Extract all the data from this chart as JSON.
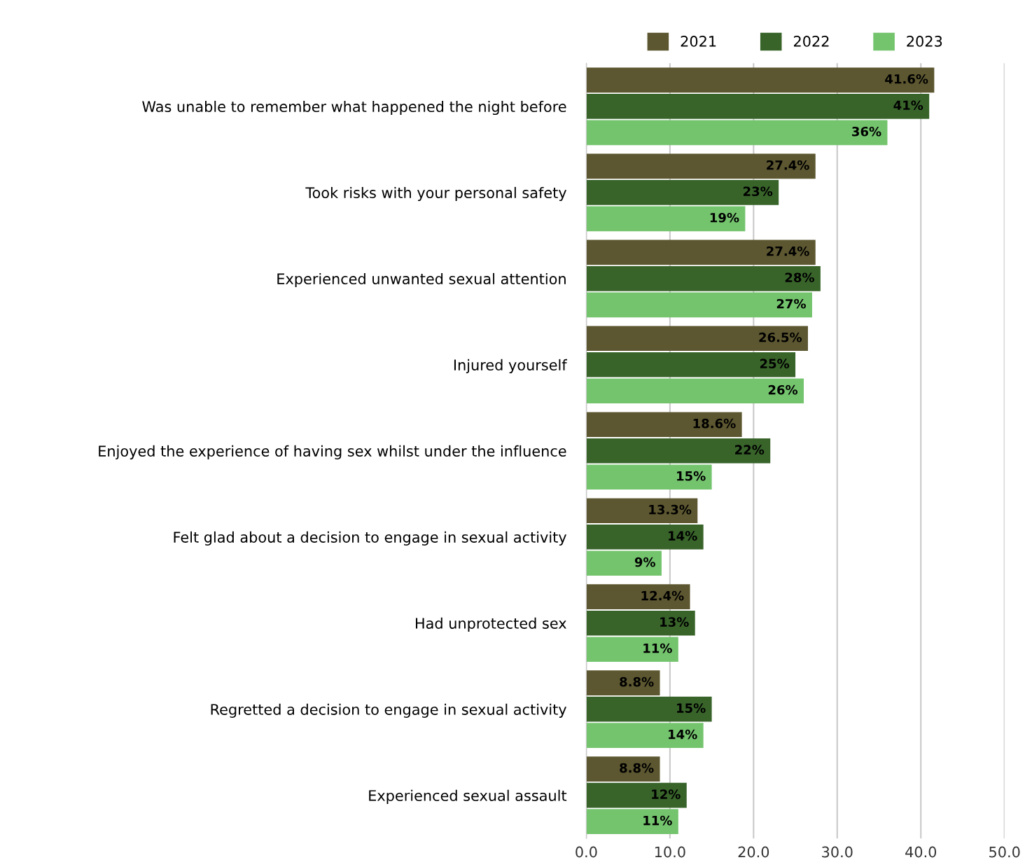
{
  "chart_data": {
    "type": "bar",
    "orientation": "horizontal",
    "categories": [
      "Was unable to remember what happened the night before",
      "Took risks with your personal safety",
      "Experienced unwanted sexual attention",
      "Injured yourself",
      "Enjoyed the experience of having sex whilst under the influence",
      "Felt glad about a decision to engage in sexual activity",
      "Had unprotected sex",
      "Regretted a decision to engage in sexual activity",
      "Experienced sexual assault"
    ],
    "series": [
      {
        "name": "2021",
        "color": "#5c5730",
        "values": [
          41.6,
          27.4,
          27.4,
          26.5,
          18.6,
          13.3,
          12.4,
          8.8,
          8.8
        ],
        "value_labels": [
          "41.6%",
          "27.4%",
          "27.4%",
          "26.5%",
          "18.6%",
          "13.3%",
          "12.4%",
          "8.8%",
          "8.8%"
        ]
      },
      {
        "name": "2022",
        "color": "#38642a",
        "values": [
          41,
          23,
          28,
          25,
          22,
          14,
          13,
          15,
          12
        ],
        "value_labels": [
          "41%",
          "23%",
          "28%",
          "25%",
          "22%",
          "14%",
          "13%",
          "15%",
          "12%"
        ]
      },
      {
        "name": "2023",
        "color": "#74c46e",
        "values": [
          36,
          19,
          27,
          26,
          15,
          9,
          11,
          14,
          11
        ],
        "value_labels": [
          "36%",
          "19%",
          "27%",
          "26%",
          "15%",
          "9%",
          "11%",
          "14%",
          "11%"
        ]
      }
    ],
    "xlim": [
      0,
      50
    ],
    "xticks": [
      {
        "value": 0,
        "label": "0.0"
      },
      {
        "value": 10,
        "label": "10.0"
      },
      {
        "value": 20,
        "label": "20.0"
      },
      {
        "value": 30,
        "label": "30.0"
      },
      {
        "value": 40,
        "label": "40.0"
      },
      {
        "value": 50,
        "label": "50.0"
      }
    ],
    "grid": "x",
    "legend": "top"
  }
}
